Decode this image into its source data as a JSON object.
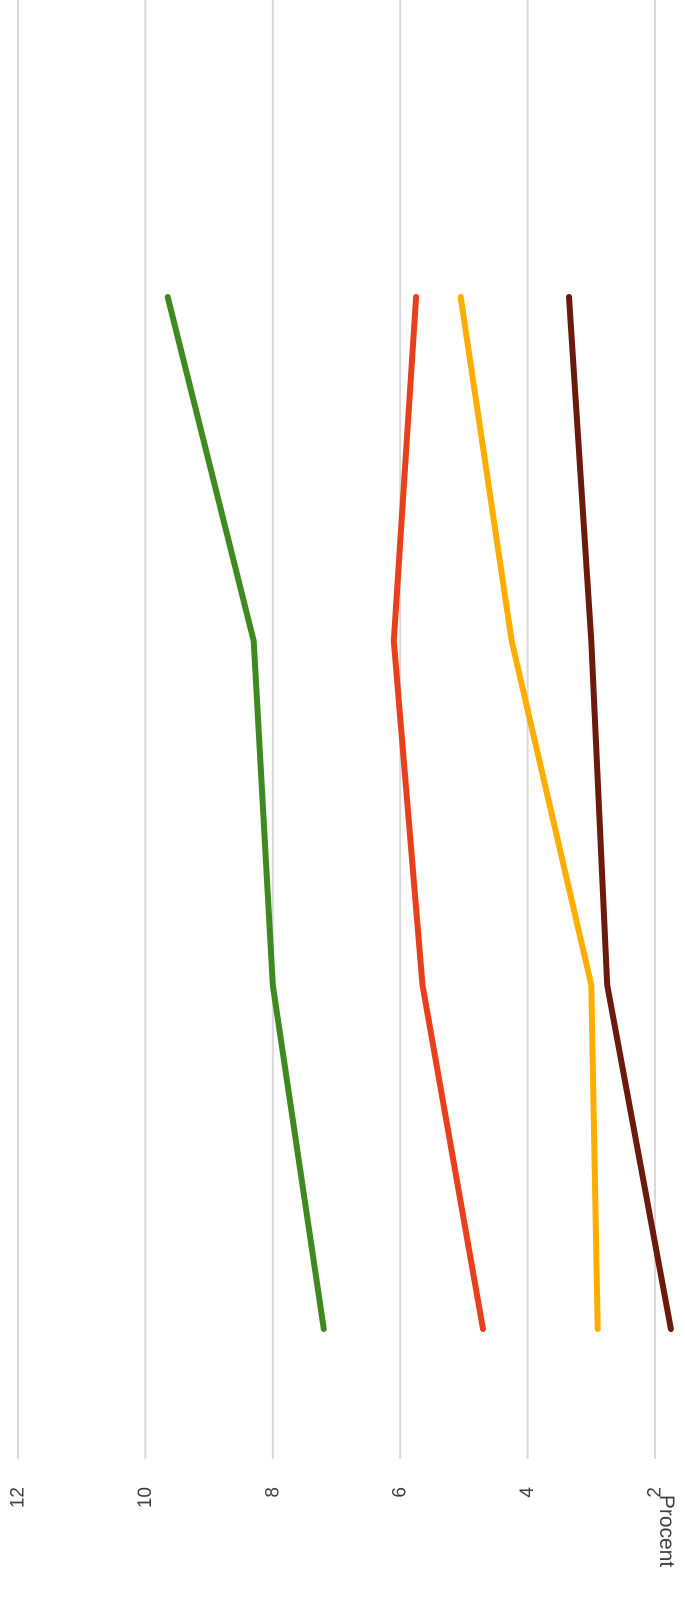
{
  "chart_data": {
    "type": "line",
    "title": "",
    "xlabel": "",
    "ylabel": "Procent",
    "ylim": [
      2,
      12
    ],
    "yticks": [
      2,
      4,
      6,
      8,
      10,
      12
    ],
    "grid": true,
    "legend": "none",
    "x": [
      1,
      2,
      3,
      4
    ],
    "series": [
      {
        "color": "#3f8a1f",
        "values": [
          7.2,
          8.0,
          8.3,
          9.65
        ]
      },
      {
        "color": "#e8401c",
        "values": [
          4.7,
          5.65,
          6.1,
          5.75
        ]
      },
      {
        "color": "#ffad00",
        "values": [
          2.9,
          3.0,
          4.25,
          5.05
        ]
      },
      {
        "color": "#6b1a0c",
        "values": [
          1.75,
          2.75,
          3.0,
          3.35
        ]
      }
    ]
  }
}
